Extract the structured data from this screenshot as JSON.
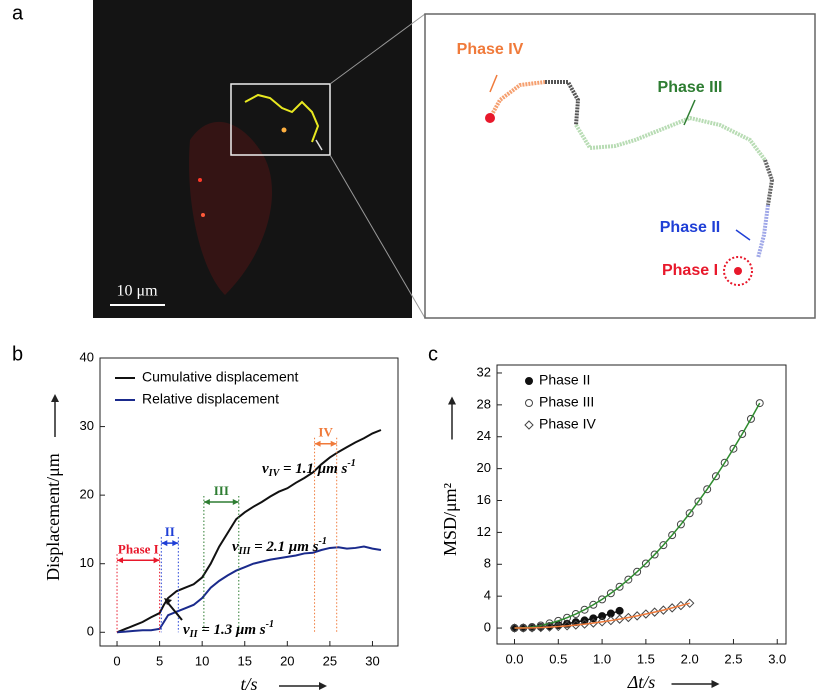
{
  "image_panel": {
    "label": "a",
    "scale_bar": "10 μm",
    "phases": [
      {
        "label": "Phase IV",
        "color": "#f07a3a"
      },
      {
        "label": "Phase III",
        "color": "#2e7d32"
      },
      {
        "label": "Phase II",
        "color": "#1f3fd6"
      },
      {
        "label": "Phase I",
        "color": "#e8182b"
      }
    ]
  },
  "chart_data": [
    {
      "type": "line",
      "label": "b",
      "xlabel": "t/s",
      "ylabel": "Displacement/μm",
      "xlim": [
        -2,
        33
      ],
      "ylim": [
        -2,
        40
      ],
      "xticks": [
        0,
        5,
        10,
        15,
        20,
        25,
        30
      ],
      "yticks": [
        0,
        10,
        20,
        30,
        40
      ],
      "x": [
        0,
        1,
        2,
        3,
        4,
        5,
        5.5,
        6,
        7,
        8,
        9,
        10,
        11,
        12,
        13,
        14,
        15,
        16,
        17,
        18,
        19,
        20,
        21,
        22,
        23,
        24,
        25,
        26,
        27,
        28,
        29,
        30,
        31
      ],
      "series": [
        {
          "name": "Cumulative displacement",
          "color": "#111111",
          "values": [
            0,
            0.5,
            1,
            1.5,
            2.2,
            2.8,
            4,
            5,
            6,
            6.5,
            7,
            8,
            10,
            12.5,
            14.5,
            16.5,
            17.5,
            18.3,
            19,
            19.8,
            20.5,
            21,
            21.8,
            22.5,
            23.3,
            24.5,
            25.5,
            26.3,
            27,
            27.7,
            28.3,
            29,
            29.5
          ]
        },
        {
          "name": "Relative displacement",
          "color": "#1a2a8c",
          "values": [
            0,
            0.1,
            0.2,
            0.3,
            0.3,
            0.5,
            1.5,
            2.5,
            3,
            3.5,
            4,
            5,
            6.5,
            7.5,
            8.3,
            9,
            9.5,
            10,
            10.3,
            10.6,
            10.8,
            11,
            11.2,
            11.5,
            11.6,
            12,
            12.3,
            12.4,
            12.2,
            12.3,
            12.5,
            12.2,
            12
          ]
        }
      ],
      "phases": [
        {
          "label": "Phase I",
          "start": 0,
          "end": 5,
          "color": "#e8182b"
        },
        {
          "label": "II",
          "start": 5.2,
          "end": 7.2,
          "color": "#1f3fd6"
        },
        {
          "label": "III",
          "start": 10.2,
          "end": 14.3,
          "color": "#2e7d32"
        },
        {
          "label": "IV",
          "start": 23.2,
          "end": 25.8,
          "color": "#f07a3a"
        }
      ],
      "annotations": [
        {
          "symbol": "v",
          "sub": "IV",
          "text": " = 1.1 μm s",
          "sup": "-1"
        },
        {
          "symbol": "v",
          "sub": "III",
          "text": " = 2.1 μm s",
          "sup": "-1"
        },
        {
          "symbol": "v",
          "sub": "II",
          "text": " = 1.3 μm s",
          "sup": "-1"
        }
      ]
    },
    {
      "type": "scatter",
      "label": "c",
      "xlabel": "Δt/s",
      "ylabel": "MSD/μm²",
      "xlim": [
        -0.2,
        3.1
      ],
      "ylim": [
        -2,
        33
      ],
      "xticks": [
        {
          "value": 0,
          "label": "0.0"
        },
        0.5,
        {
          "value": 1,
          "label": "1.0"
        },
        1.5,
        {
          "value": 2,
          "label": "2.0"
        },
        2.5,
        {
          "value": 3,
          "label": "3.0"
        }
      ],
      "yticks": [
        0,
        4,
        8,
        12,
        16,
        20,
        24,
        28,
        32
      ],
      "series": [
        {
          "name": "Phase II",
          "marker": "filled-circle",
          "color": "#111111",
          "line_color": "#111111",
          "x": [
            0,
            0.1,
            0.2,
            0.3,
            0.4,
            0.5,
            0.6,
            0.7,
            0.8,
            0.9,
            1,
            1.1,
            1.2
          ],
          "values": [
            0,
            0.02,
            0.06,
            0.14,
            0.24,
            0.38,
            0.54,
            0.74,
            0.96,
            1.22,
            1.5,
            1.82,
            2.16
          ]
        },
        {
          "name": "Phase III",
          "marker": "open-circle",
          "color": "#444444",
          "line_color": "#2e8b2e",
          "x": [
            0,
            0.1,
            0.2,
            0.3,
            0.4,
            0.5,
            0.6,
            0.7,
            0.8,
            0.9,
            1,
            1.1,
            1.2,
            1.3,
            1.4,
            1.5,
            1.6,
            1.7,
            1.8,
            1.9,
            2,
            2.1,
            2.2,
            2.3,
            2.4,
            2.5,
            2.6,
            2.7,
            2.8
          ],
          "values": [
            0,
            0.04,
            0.14,
            0.32,
            0.58,
            0.9,
            1.3,
            1.76,
            2.3,
            2.92,
            3.6,
            4.36,
            5.18,
            6.08,
            7.06,
            8.1,
            9.22,
            10.4,
            11.66,
            13,
            14.4,
            15.88,
            17.42,
            19.04,
            20.74,
            22.5,
            24.34,
            26.24,
            28.22
          ]
        },
        {
          "name": "Phase IV",
          "marker": "open-diamond",
          "color": "#444444",
          "line_color": "#f07a3a",
          "x": [
            0,
            0.1,
            0.2,
            0.3,
            0.4,
            0.5,
            0.6,
            0.7,
            0.8,
            0.9,
            1,
            1.1,
            1.2,
            1.3,
            1.4,
            1.5,
            1.6,
            1.7,
            1.8,
            1.9,
            2
          ],
          "values": [
            0,
            0.01,
            0.03,
            0.07,
            0.12,
            0.2,
            0.28,
            0.38,
            0.5,
            0.63,
            0.78,
            0.94,
            1.12,
            1.32,
            1.53,
            1.76,
            2,
            2.25,
            2.53,
            2.82,
            3.12
          ]
        }
      ]
    }
  ]
}
